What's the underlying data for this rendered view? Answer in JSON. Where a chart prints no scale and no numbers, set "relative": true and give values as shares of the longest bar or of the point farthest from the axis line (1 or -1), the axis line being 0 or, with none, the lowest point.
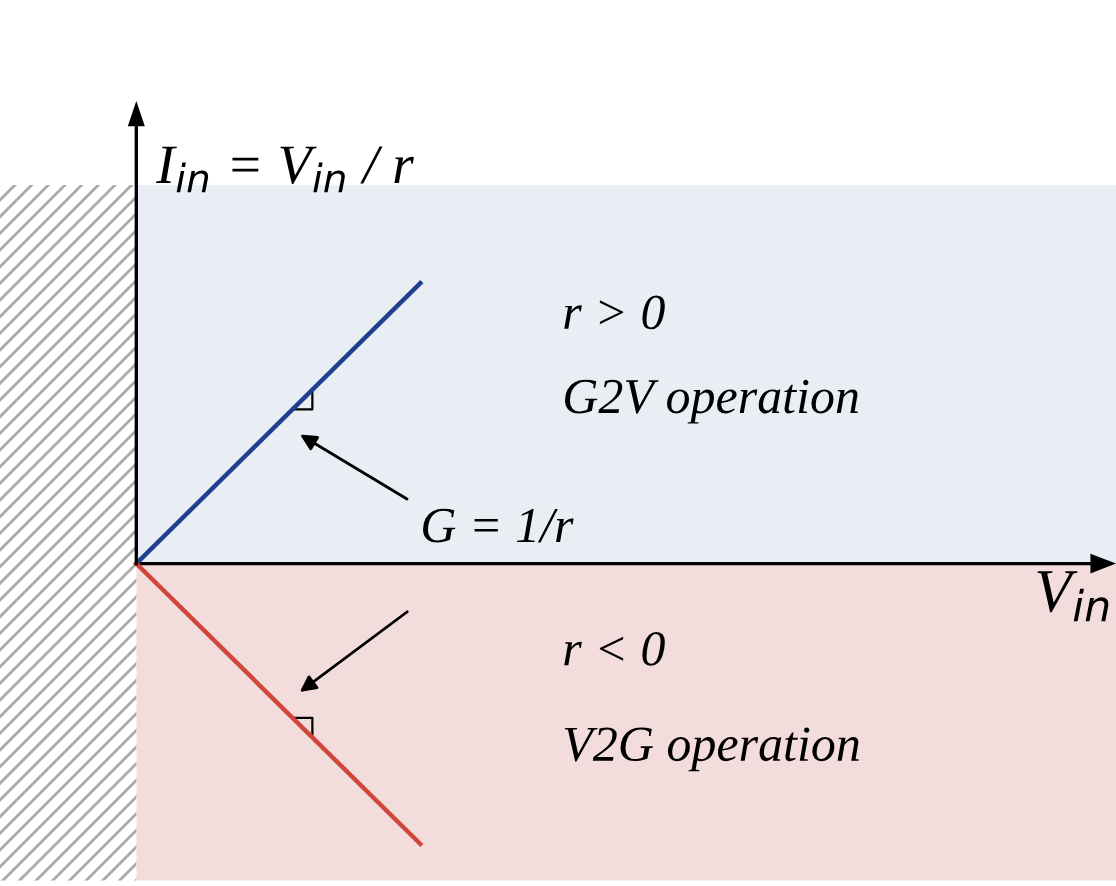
{
  "chart_data": {
    "type": "line",
    "relative": true,
    "categories": [
      null,
      null
    ],
    "ylabel": "I$_{in}$ = V$_{in}$ / r",
    "series": [
      {
        "color": "#1f3f8f",
        "values": [
          0,
          1
        ]
      },
      {
        "color": "#d0463a",
        "values": [
          0,
          -1
        ]
      }
    ],
    "bands": [
      {
        "axis": "y",
        "from": 0,
        "to": 1.35,
        "color": "#e9eef5"
      },
      {
        "axis": "y",
        "from": 0,
        "to": -1.13,
        "color": "#f3dcdc"
      }
    ],
    "annotations": [
      "r > 0",
      "G2V operation",
      "G = 1/r",
      "r < 0",
      "V2G operation",
      "V$_{in}$"
    ],
    "marker": "none",
    "line_style": "solid"
  }
}
